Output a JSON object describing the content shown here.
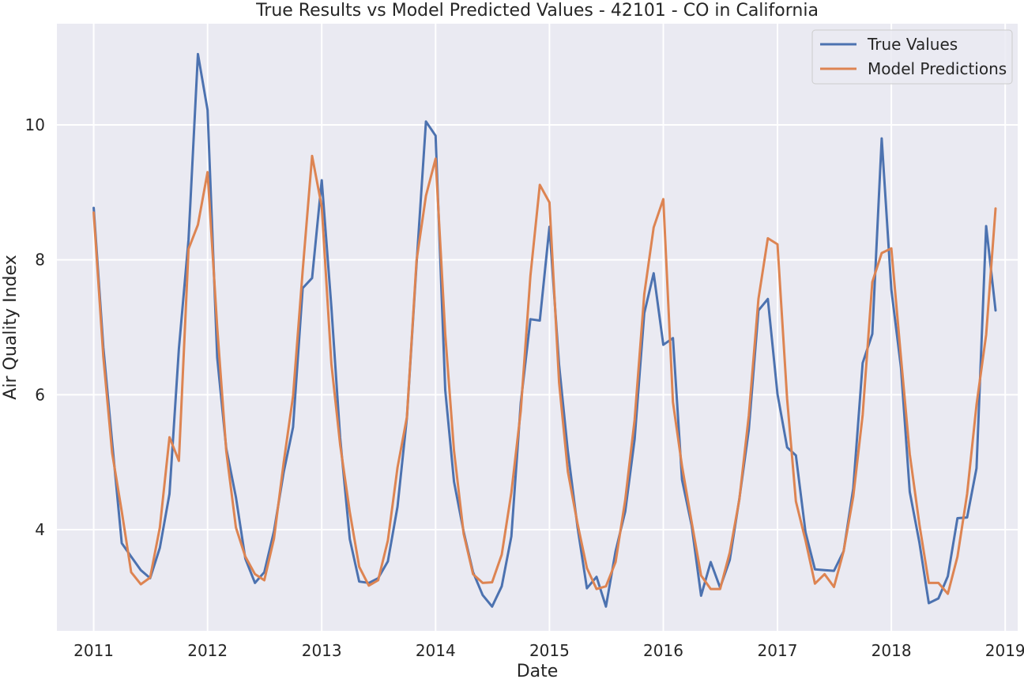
{
  "chart_data": {
    "type": "line",
    "title": "True Results vs Model Predicted Values - 42101 - CO in California",
    "xlabel": "Date",
    "ylabel": "Air Quality Index",
    "x_ticks": [
      "2011",
      "2012",
      "2013",
      "2014",
      "2015",
      "2016",
      "2017",
      "2018",
      "2019"
    ],
    "y_ticks": [
      "4",
      "6",
      "8",
      "10"
    ],
    "xlim": [
      "2010-09-05",
      "2019-02-10"
    ],
    "ylim": [
      2.5,
      11.5
    ],
    "grid": true,
    "legend_position": "top-right",
    "x": [
      "2011-01",
      "2011-02",
      "2011-03",
      "2011-04",
      "2011-05",
      "2011-06",
      "2011-07",
      "2011-08",
      "2011-09",
      "2011-10",
      "2011-11",
      "2011-12",
      "2012-01",
      "2012-02",
      "2012-03",
      "2012-04",
      "2012-05",
      "2012-06",
      "2012-07",
      "2012-08",
      "2012-09",
      "2012-10",
      "2012-11",
      "2012-12",
      "2013-01",
      "2013-02",
      "2013-03",
      "2013-04",
      "2013-05",
      "2013-06",
      "2013-07",
      "2013-08",
      "2013-09",
      "2013-10",
      "2013-11",
      "2013-12",
      "2014-01",
      "2014-02",
      "2014-03",
      "2014-04",
      "2014-05",
      "2014-06",
      "2014-07",
      "2014-08",
      "2014-09",
      "2014-10",
      "2014-11",
      "2014-12",
      "2015-01",
      "2015-02",
      "2015-03",
      "2015-04",
      "2015-05",
      "2015-06",
      "2015-07",
      "2015-08",
      "2015-09",
      "2015-10",
      "2015-11",
      "2015-12",
      "2016-01",
      "2016-02",
      "2016-03",
      "2016-04",
      "2016-05",
      "2016-06",
      "2016-07",
      "2016-08",
      "2016-09",
      "2016-10",
      "2016-11",
      "2016-12",
      "2017-01",
      "2017-02",
      "2017-03",
      "2017-04",
      "2017-05",
      "2017-06",
      "2017-07",
      "2017-08",
      "2017-09",
      "2017-10",
      "2017-11",
      "2017-12",
      "2018-01",
      "2018-02",
      "2018-03",
      "2018-04",
      "2018-05",
      "2018-06",
      "2018-07",
      "2018-08",
      "2018-09",
      "2018-10",
      "2018-11",
      "2018-12"
    ],
    "series": [
      {
        "name": "True Values",
        "color": "#4c72b0",
        "values": [
          8.77,
          6.7,
          5.3,
          3.8,
          3.6,
          3.4,
          3.28,
          3.73,
          4.53,
          6.68,
          8.3,
          11.05,
          10.22,
          6.55,
          5.2,
          4.48,
          3.57,
          3.21,
          3.37,
          3.98,
          4.85,
          5.52,
          7.58,
          7.73,
          9.18,
          7.3,
          5.36,
          3.86,
          3.23,
          3.21,
          3.28,
          3.53,
          4.34,
          5.66,
          7.94,
          10.05,
          9.84,
          6.07,
          4.71,
          3.97,
          3.37,
          3.03,
          2.86,
          3.16,
          3.9,
          5.88,
          7.12,
          7.1,
          8.49,
          6.44,
          5.16,
          4.04,
          3.13,
          3.3,
          2.86,
          3.68,
          4.27,
          5.34,
          7.21,
          7.8,
          6.74,
          6.84,
          4.74,
          4.06,
          3.02,
          3.52,
          3.14,
          3.55,
          4.46,
          5.48,
          7.25,
          7.42,
          6.01,
          5.22,
          5.1,
          3.96,
          3.41,
          3.4,
          3.39,
          3.68,
          4.61,
          6.47,
          6.9,
          9.8,
          7.56,
          6.4,
          4.56,
          3.81,
          2.91,
          2.98,
          3.31,
          4.17,
          4.18,
          4.91,
          8.5,
          7.25
        ]
      },
      {
        "name": "Model Predictions",
        "color": "#dd8452",
        "values": [
          8.7,
          6.56,
          5.14,
          4.27,
          3.37,
          3.19,
          3.29,
          4.03,
          5.37,
          5.02,
          8.16,
          8.52,
          9.3,
          7.0,
          5.16,
          4.03,
          3.6,
          3.34,
          3.25,
          3.87,
          4.99,
          5.98,
          7.84,
          9.54,
          8.79,
          6.46,
          5.26,
          4.26,
          3.45,
          3.17,
          3.25,
          3.84,
          4.92,
          5.67,
          7.99,
          8.95,
          9.5,
          6.9,
          5.17,
          3.94,
          3.34,
          3.21,
          3.22,
          3.63,
          4.55,
          5.76,
          7.76,
          9.11,
          8.85,
          6.18,
          4.86,
          4.09,
          3.43,
          3.12,
          3.16,
          3.52,
          4.44,
          5.63,
          7.49,
          8.48,
          8.9,
          5.89,
          4.94,
          4.11,
          3.32,
          3.12,
          3.12,
          3.66,
          4.45,
          5.69,
          7.42,
          8.32,
          8.23,
          5.94,
          4.42,
          3.84,
          3.2,
          3.34,
          3.15,
          3.68,
          4.49,
          5.7,
          7.67,
          8.1,
          8.17,
          6.55,
          5.12,
          4.08,
          3.21,
          3.21,
          3.05,
          3.6,
          4.53,
          5.85,
          6.89,
          8.76
        ]
      }
    ]
  }
}
